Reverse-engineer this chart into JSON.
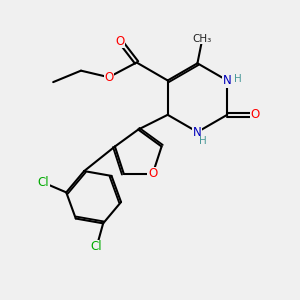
{
  "bg_color": "#f0f0f0",
  "bond_color": "#000000",
  "bond_width": 1.5,
  "dbo": 0.06,
  "atom_colors": {
    "O": "#ff0000",
    "N": "#0000bb",
    "Cl": "#00aa00",
    "H": "#4a9999"
  },
  "font_size": 8.5,
  "figsize": [
    3.0,
    3.0
  ],
  "dpi": 100
}
